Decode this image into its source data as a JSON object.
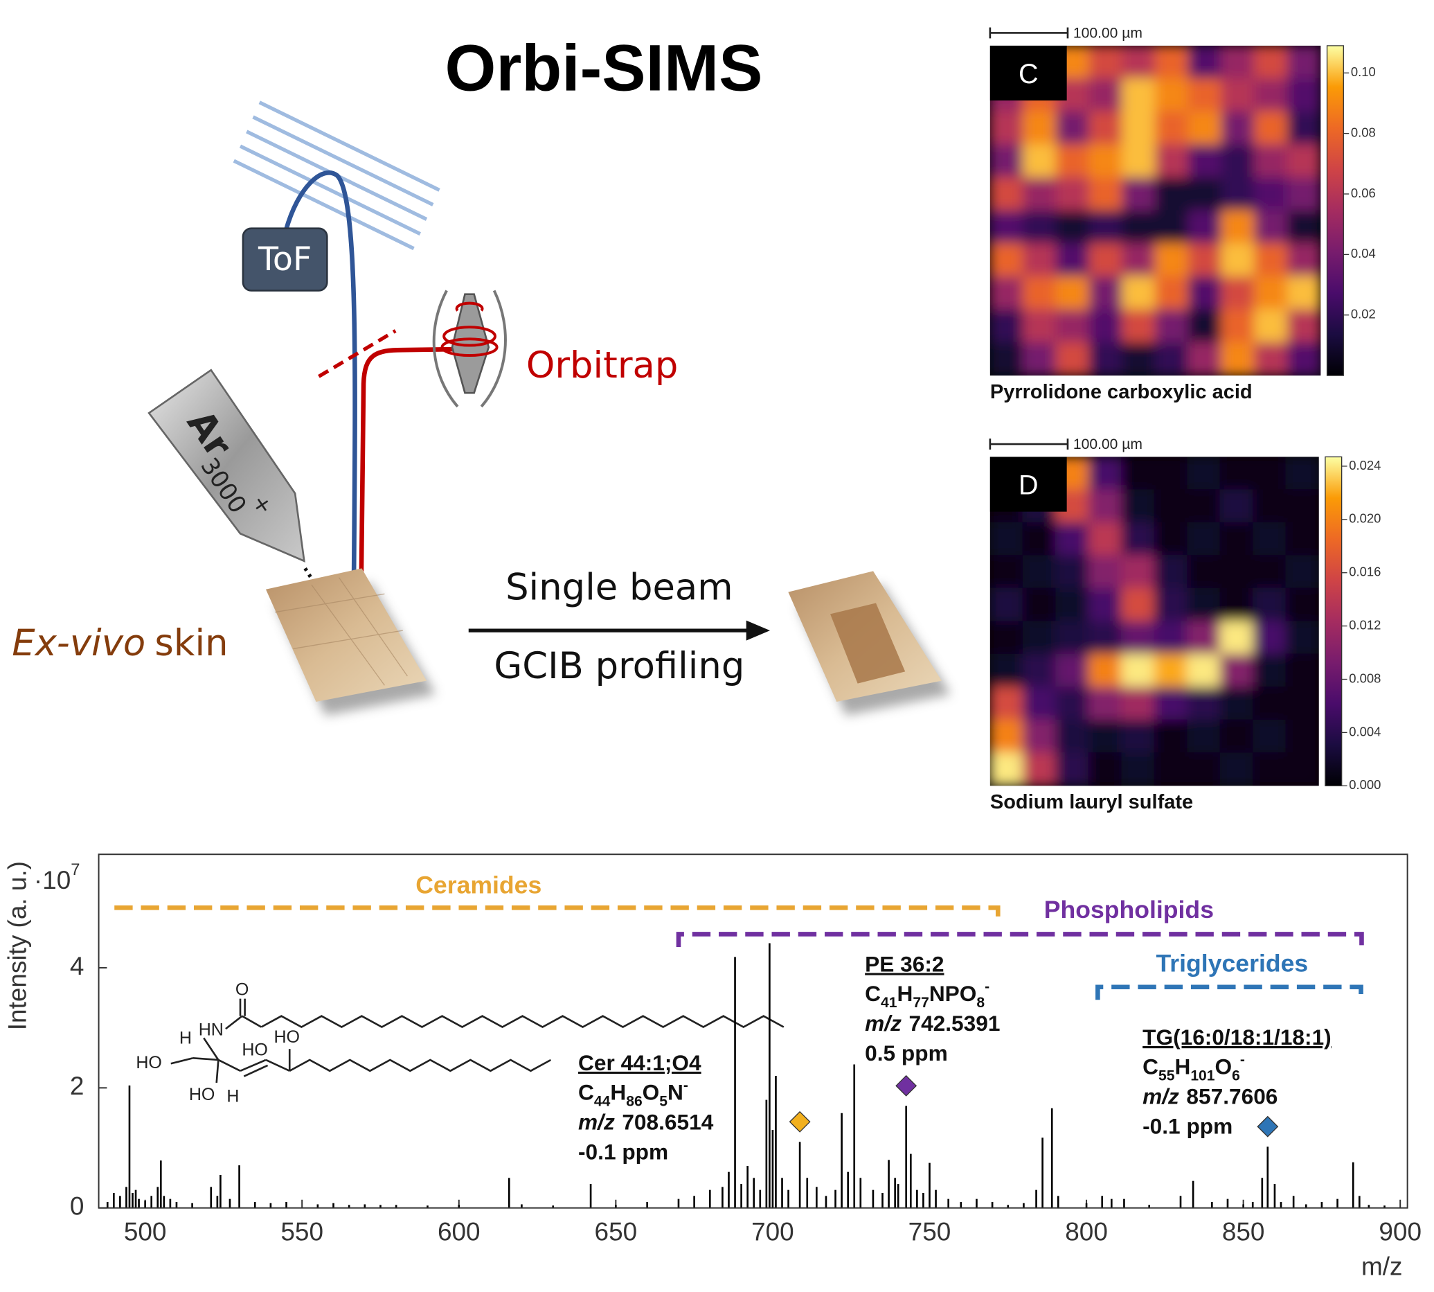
{
  "diagram": {
    "title": "Orbi-SIMS",
    "detector": "ToF",
    "analyzer": "Orbitrap",
    "gun": {
      "species": "Ar",
      "size": "3000",
      "charge": "+"
    },
    "sample": {
      "prefix": "Ex-vivo",
      "suffix": "skin"
    },
    "process": {
      "top": "Single beam",
      "bottom": "GCIB profiling"
    }
  },
  "chart_data": [
    {
      "type": "heatmap",
      "panel": "C",
      "caption": "Pyrrolidone carboxylic acid",
      "scale_bar": "100.00 µm",
      "colormap": "inferno",
      "ylim": [
        0,
        0.109
      ],
      "yticks": [
        0.02,
        0.04,
        0.06,
        0.08,
        {
          "value": 0.1,
          "label": "0.10"
        }
      ],
      "values": [
        [
          0.01,
          0.03,
          0.09,
          0.07,
          0.06,
          0.08,
          0.03,
          0.05,
          0.07,
          0.04
        ],
        [
          0.05,
          0.08,
          0.06,
          0.05,
          0.1,
          0.09,
          0.08,
          0.06,
          0.05,
          0.03
        ],
        [
          0.06,
          0.09,
          0.04,
          0.07,
          0.1,
          0.08,
          0.09,
          0.04,
          0.08,
          0.02
        ],
        [
          0.04,
          0.1,
          0.08,
          0.09,
          0.1,
          0.06,
          0.03,
          0.02,
          0.05,
          0.06
        ],
        [
          0.07,
          0.05,
          0.06,
          0.08,
          0.04,
          0.01,
          0.01,
          0.02,
          0.03,
          0.04
        ],
        [
          0.03,
          0.02,
          0.01,
          0.02,
          0.01,
          0.01,
          0.03,
          0.09,
          0.04,
          0.01
        ],
        [
          0.08,
          0.06,
          0.03,
          0.07,
          0.05,
          0.09,
          0.07,
          0.1,
          0.08,
          0.05
        ],
        [
          0.05,
          0.08,
          0.09,
          0.04,
          0.1,
          0.08,
          0.03,
          0.07,
          0.09,
          0.1
        ],
        [
          0.02,
          0.06,
          0.05,
          0.03,
          0.07,
          0.04,
          0.01,
          0.08,
          0.1,
          0.06
        ],
        [
          0.01,
          0.04,
          0.07,
          0.02,
          0.01,
          0.02,
          0.05,
          0.09,
          0.06,
          0.03
        ]
      ]
    },
    {
      "type": "heatmap",
      "panel": "D",
      "caption": "Sodium lauryl sulfate",
      "scale_bar": "100.00 µm",
      "colormap": "inferno",
      "ylim": [
        0,
        0.0247
      ],
      "yticks": [
        {
          "value": 0,
          "label": "0.000"
        },
        0.004,
        0.008,
        0.012,
        0.016,
        {
          "value": 0.02,
          "label": "0.020"
        },
        0.024
      ],
      "values": [
        [
          0.002,
          0.004,
          0.02,
          0.006,
          0.001,
          0.001,
          0.002,
          0.001,
          0.001,
          0.002
        ],
        [
          0.001,
          0.003,
          0.016,
          0.01,
          0.002,
          0.001,
          0.001,
          0.003,
          0.001,
          0.001
        ],
        [
          0.002,
          0.001,
          0.006,
          0.014,
          0.004,
          0.001,
          0.002,
          0.001,
          0.002,
          0.001
        ],
        [
          0.001,
          0.002,
          0.003,
          0.01,
          0.012,
          0.003,
          0.001,
          0.001,
          0.001,
          0.002
        ],
        [
          0.003,
          0.001,
          0.002,
          0.006,
          0.016,
          0.004,
          0.002,
          0.001,
          0.003,
          0.001
        ],
        [
          0.001,
          0.002,
          0.003,
          0.004,
          0.008,
          0.006,
          0.01,
          0.024,
          0.006,
          0.002
        ],
        [
          0.002,
          0.004,
          0.008,
          0.02,
          0.024,
          0.022,
          0.024,
          0.01,
          0.002,
          0.001
        ],
        [
          0.016,
          0.006,
          0.004,
          0.01,
          0.012,
          0.006,
          0.004,
          0.002,
          0.001,
          0.001
        ],
        [
          0.02,
          0.01,
          0.003,
          0.002,
          0.003,
          0.001,
          0.002,
          0.001,
          0.002,
          0.001
        ],
        [
          0.024,
          0.014,
          0.004,
          0.001,
          0.002,
          0.001,
          0.001,
          0.002,
          0.001,
          0.001
        ]
      ]
    },
    {
      "type": "spectrum",
      "xlabel": "m/z",
      "ylabel": "Intensity (a. u.)",
      "multiplier": {
        "base": "·10",
        "exponent": "7"
      },
      "color": "#000000",
      "xlim": [
        485.2,
        902.3
      ],
      "xticks": [
        500,
        550,
        600,
        650,
        700,
        750,
        800,
        850,
        900
      ],
      "ylim": [
        0,
        5.89
      ],
      "yticks": [
        0,
        2,
        4
      ],
      "x": [
        488,
        490,
        492,
        494,
        495,
        496,
        497,
        498,
        500,
        502,
        504,
        505,
        506,
        508,
        510,
        515,
        521,
        523,
        524,
        527,
        530,
        535,
        540,
        545,
        555,
        560,
        565,
        570,
        575,
        580,
        590,
        600,
        616,
        620,
        630,
        642,
        650,
        660,
        670,
        675,
        680,
        684,
        686,
        688,
        690,
        692,
        694,
        696,
        698,
        699,
        700,
        701,
        703,
        705,
        708.65,
        711,
        714,
        717,
        720,
        722,
        724,
        726,
        728,
        732,
        735,
        737,
        739,
        740,
        742.54,
        744,
        746,
        748,
        750,
        752,
        756,
        760,
        765,
        770,
        775,
        780,
        784,
        786,
        789,
        791,
        800,
        805,
        808,
        812,
        820,
        830,
        834,
        840,
        845,
        850,
        853,
        856,
        857.76,
        860,
        862,
        866,
        870,
        875,
        880,
        885,
        887,
        890,
        895
      ],
      "values": [
        0.1,
        0.25,
        0.2,
        0.35,
        2.04,
        0.25,
        0.3,
        0.15,
        0.12,
        0.2,
        0.35,
        0.79,
        0.2,
        0.15,
        0.1,
        0.08,
        0.35,
        0.2,
        0.55,
        0.15,
        0.71,
        0.1,
        0.08,
        0.1,
        0.06,
        0.08,
        0.05,
        0.06,
        0.05,
        0.05,
        0.04,
        0.05,
        0.5,
        0.06,
        0.04,
        0.4,
        0.05,
        0.1,
        0.15,
        0.2,
        0.3,
        0.35,
        0.6,
        4.18,
        0.4,
        0.7,
        0.5,
        0.3,
        1.8,
        4.41,
        1.3,
        2.2,
        0.5,
        0.3,
        1.1,
        0.5,
        0.35,
        0.2,
        0.3,
        1.58,
        0.6,
        2.39,
        0.5,
        0.3,
        0.25,
        0.8,
        0.5,
        0.4,
        1.7,
        0.9,
        0.3,
        0.25,
        0.75,
        0.3,
        0.15,
        0.1,
        0.15,
        0.1,
        0.05,
        0.08,
        0.3,
        1.17,
        1.66,
        0.2,
        0.08,
        0.2,
        0.15,
        0.15,
        0.05,
        0.2,
        0.45,
        0.1,
        0.15,
        0.06,
        0.1,
        0.5,
        1.02,
        0.4,
        0.1,
        0.2,
        0.06,
        0.1,
        0.15,
        0.76,
        0.2,
        0.05,
        0.04
      ],
      "groups": [
        {
          "name": "Ceramides",
          "color": "#E8A532",
          "range": [
            490.2,
            771.8
          ],
          "y": 5.0
        },
        {
          "name": "Phospholipids",
          "color": "#7030A0",
          "range": [
            670,
            887.7
          ],
          "y": 4.56
        },
        {
          "name": "Triglycerides",
          "color": "#2E75B6",
          "range": [
            803.6,
            887.5
          ],
          "y": 3.68
        }
      ],
      "annotations": [
        {
          "name": "Cer 44:1;O4",
          "formula": "C44H86O5N-",
          "mz_label": "m/z",
          "mz": 708.6514,
          "error": "-0.1 ppm",
          "color": "#F2B01E"
        },
        {
          "name": "PE 36:2",
          "formula": "C41H77NPO8-",
          "mz_label": "m/z",
          "mz": 742.5391,
          "error": "0.5 ppm",
          "color": "#7030A0"
        },
        {
          "name": "TG(16:0/18:1/18:1)",
          "formula": "C55H101O6-",
          "mz_label": "m/z",
          "mz": 857.7606,
          "error": "-0.1 ppm",
          "color": "#2E75B6"
        }
      ],
      "structure": {
        "atoms": [
          "O",
          "HN",
          "H",
          "HO",
          "HO",
          "HO",
          "HO",
          "H"
        ]
      }
    }
  ]
}
